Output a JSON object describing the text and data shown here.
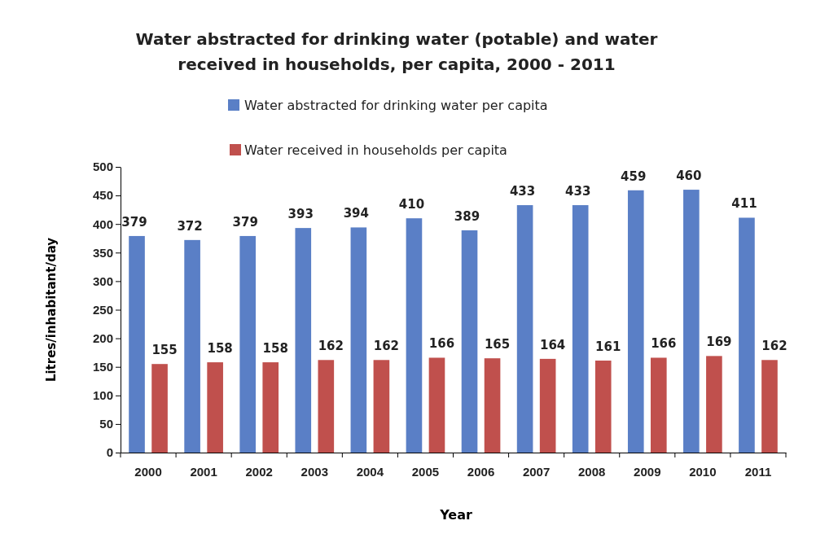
{
  "chart_data": {
    "type": "bar",
    "title": "Water abstracted for drinking water (potable) and water received in households, per capita, 2000 - 2011",
    "xlabel": "Year",
    "ylabel": "Litres/inhabitant/day",
    "categories": [
      "2000",
      "2001",
      "2002",
      "2003",
      "2004",
      "2005",
      "2006",
      "2007",
      "2008",
      "2009",
      "2010",
      "2011"
    ],
    "series": [
      {
        "name": "Water abstracted for drinking water per capita",
        "color": "#5a7fc6",
        "values": [
          379,
          372,
          379,
          393,
          394,
          410,
          389,
          433,
          433,
          459,
          460,
          411
        ]
      },
      {
        "name": "Water received in households per capita",
        "color": "#c0504d",
        "values": [
          155,
          158,
          158,
          162,
          162,
          166,
          165,
          164,
          161,
          166,
          169,
          162
        ]
      }
    ],
    "ylim": [
      0,
      500
    ],
    "yticks": [
      0,
      50,
      100,
      150,
      200,
      250,
      300,
      350,
      400,
      450,
      500
    ],
    "data_labels": true,
    "legend": "top",
    "grid": false
  }
}
